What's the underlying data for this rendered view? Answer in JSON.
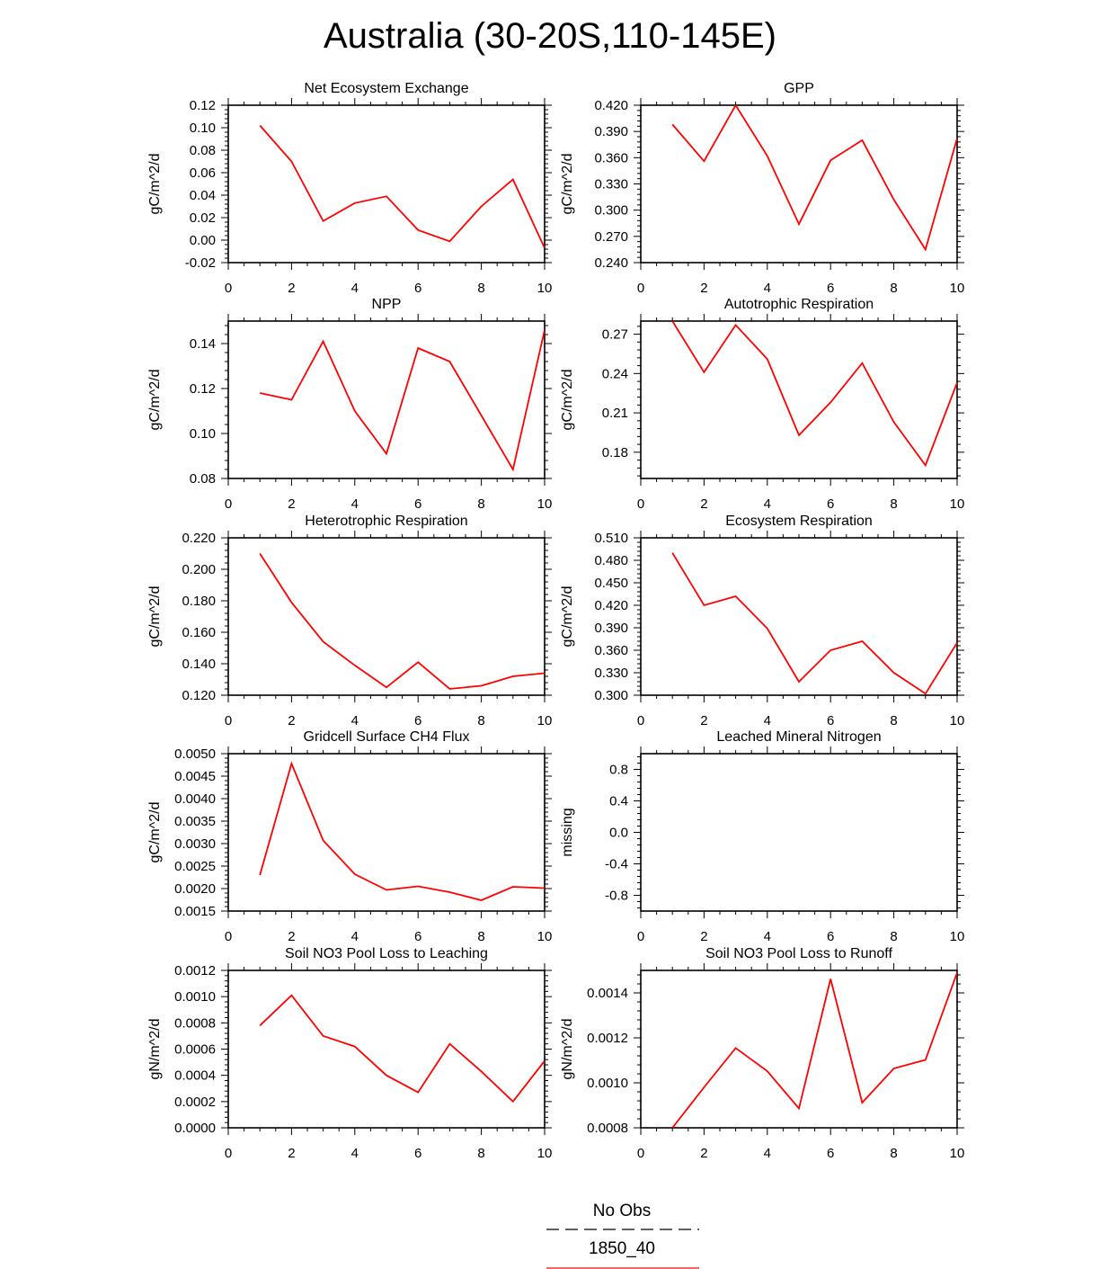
{
  "title": "Australia (30-20S,110-145E)",
  "colors": {
    "model_line": "#ff0000",
    "obs_line": "#000000",
    "axis": "#000000"
  },
  "legend": {
    "obs_label": "No Obs",
    "model_label": "1850_40"
  },
  "chart_data": [
    {
      "type": "line",
      "title": "Net Ecosystem Exchange",
      "ylabel": "gC/m^2/d",
      "xlim": [
        0,
        10
      ],
      "ylim": [
        -0.02,
        0.12
      ],
      "xticks": [
        0,
        2,
        4,
        6,
        8,
        10
      ],
      "yticks": [
        "-0.02",
        "0.00",
        "0.02",
        "0.04",
        "0.06",
        "0.08",
        "0.10",
        "0.12"
      ],
      "series": [
        {
          "x": [
            1,
            2,
            3,
            4,
            5,
            6,
            7,
            8,
            9,
            10
          ],
          "values": [
            0.102,
            0.07,
            0.017,
            0.033,
            0.039,
            0.009,
            -0.001,
            0.03,
            0.054,
            -0.007
          ]
        }
      ]
    },
    {
      "type": "line",
      "title": "GPP",
      "ylabel": "gC/m^2/d",
      "xlim": [
        0,
        10
      ],
      "ylim": [
        0.24,
        0.42
      ],
      "xticks": [
        0,
        2,
        4,
        6,
        8,
        10
      ],
      "yticks": [
        "0.240",
        "0.270",
        "0.300",
        "0.330",
        "0.360",
        "0.390",
        "0.420"
      ],
      "series": [
        {
          "x": [
            1,
            2,
            3,
            4,
            5,
            6,
            7,
            8,
            9,
            10
          ],
          "values": [
            0.398,
            0.356,
            0.42,
            0.362,
            0.284,
            0.357,
            0.38,
            0.312,
            0.255,
            0.382
          ]
        }
      ]
    },
    {
      "type": "line",
      "title": "NPP",
      "ylabel": "gC/m^2/d",
      "xlim": [
        0,
        10
      ],
      "ylim": [
        0.08,
        0.15
      ],
      "xticks": [
        0,
        2,
        4,
        6,
        8,
        10
      ],
      "yticks": [
        "0.08",
        "0.10",
        "0.12",
        "0.14"
      ],
      "series": [
        {
          "x": [
            1,
            2,
            3,
            4,
            5,
            6,
            7,
            8,
            9,
            10
          ],
          "values": [
            0.118,
            0.115,
            0.141,
            0.11,
            0.091,
            0.138,
            0.132,
            0.108,
            0.084,
            0.146
          ]
        }
      ]
    },
    {
      "type": "line",
      "title": "Autotrophic Respiration",
      "ylabel": "gC/m^2/d",
      "xlim": [
        0,
        10
      ],
      "ylim": [
        0.16,
        0.28
      ],
      "xticks": [
        0,
        2,
        4,
        6,
        8,
        10
      ],
      "yticks": [
        "0.18",
        "0.21",
        "0.24",
        "0.27"
      ],
      "series": [
        {
          "x": [
            1,
            2,
            3,
            4,
            5,
            6,
            7,
            8,
            9,
            10
          ],
          "values": [
            0.28,
            0.241,
            0.277,
            0.251,
            0.193,
            0.218,
            0.248,
            0.203,
            0.17,
            0.233
          ]
        }
      ]
    },
    {
      "type": "line",
      "title": "Heterotrophic Respiration",
      "ylabel": "gC/m^2/d",
      "xlim": [
        0,
        10
      ],
      "ylim": [
        0.12,
        0.22
      ],
      "xticks": [
        0,
        2,
        4,
        6,
        8,
        10
      ],
      "yticks": [
        "0.120",
        "0.140",
        "0.160",
        "0.180",
        "0.200",
        "0.220"
      ],
      "series": [
        {
          "x": [
            1,
            2,
            3,
            4,
            5,
            6,
            7,
            8,
            9,
            10
          ],
          "values": [
            0.21,
            0.179,
            0.154,
            0.139,
            0.125,
            0.141,
            0.124,
            0.126,
            0.132,
            0.134
          ]
        }
      ]
    },
    {
      "type": "line",
      "title": "Ecosystem Respiration",
      "ylabel": "gC/m^2/d",
      "xlim": [
        0,
        10
      ],
      "ylim": [
        0.3,
        0.51
      ],
      "xticks": [
        0,
        2,
        4,
        6,
        8,
        10
      ],
      "yticks": [
        "0.300",
        "0.330",
        "0.360",
        "0.390",
        "0.420",
        "0.450",
        "0.480",
        "0.510"
      ],
      "series": [
        {
          "x": [
            1,
            2,
            3,
            4,
            5,
            6,
            7,
            8,
            9,
            10
          ],
          "values": [
            0.49,
            0.42,
            0.432,
            0.389,
            0.318,
            0.36,
            0.372,
            0.33,
            0.302,
            0.37
          ]
        }
      ]
    },
    {
      "type": "line",
      "title": "Gridcell Surface CH4 Flux",
      "ylabel": "gC/m^2/d",
      "xlim": [
        0,
        10
      ],
      "ylim": [
        0.0015,
        0.005
      ],
      "xticks": [
        0,
        2,
        4,
        6,
        8,
        10
      ],
      "yticks": [
        "0.0015",
        "0.0020",
        "0.0025",
        "0.0030",
        "0.0035",
        "0.0040",
        "0.0045",
        "0.0050"
      ],
      "series": [
        {
          "x": [
            1,
            2,
            3,
            4,
            5,
            6,
            7,
            8,
            9,
            10
          ],
          "values": [
            0.0023,
            0.00478,
            0.00307,
            0.00232,
            0.00197,
            0.00205,
            0.00192,
            0.00174,
            0.00204,
            0.00201
          ]
        }
      ]
    },
    {
      "type": "line",
      "title": "Leached Mineral Nitrogen",
      "ylabel": "missing",
      "xlim": [
        0,
        10
      ],
      "ylim": [
        -1.0,
        1.0
      ],
      "xticks": [
        0,
        2,
        4,
        6,
        8,
        10
      ],
      "yticks": [
        "-0.8",
        "-0.4",
        "0.0",
        "0.4",
        "0.8"
      ],
      "series": []
    },
    {
      "type": "line",
      "title": "Soil NO3 Pool Loss to Leaching",
      "ylabel": "gN/m^2/d",
      "xlim": [
        0,
        10
      ],
      "ylim": [
        0.0,
        0.0012
      ],
      "xticks": [
        0,
        2,
        4,
        6,
        8,
        10
      ],
      "yticks": [
        "0.0000",
        "0.0002",
        "0.0004",
        "0.0006",
        "0.0008",
        "0.0010",
        "0.0012"
      ],
      "series": [
        {
          "x": [
            1,
            2,
            3,
            4,
            5,
            6,
            7,
            8,
            9,
            10
          ],
          "values": [
            0.00078,
            0.00101,
            0.0007,
            0.00062,
            0.0004,
            0.00027,
            0.00064,
            0.00043,
            0.0002,
            0.00051
          ]
        }
      ]
    },
    {
      "type": "line",
      "title": "Soil NO3 Pool Loss to Runoff",
      "ylabel": "gN/m^2/d",
      "xlim": [
        0,
        10
      ],
      "ylim": [
        0.0008,
        0.0015
      ],
      "xticks": [
        0,
        2,
        4,
        6,
        8,
        10
      ],
      "yticks": [
        "0.0008",
        "0.0010",
        "0.0012",
        "0.0014"
      ],
      "series": [
        {
          "x": [
            1,
            2,
            3,
            4,
            5,
            6,
            7,
            8,
            9,
            10
          ],
          "values": [
            0.0008,
            0.00098,
            0.001155,
            0.001052,
            0.000886,
            0.001462,
            0.000912,
            0.001064,
            0.001102,
            0.00149
          ]
        }
      ]
    }
  ]
}
